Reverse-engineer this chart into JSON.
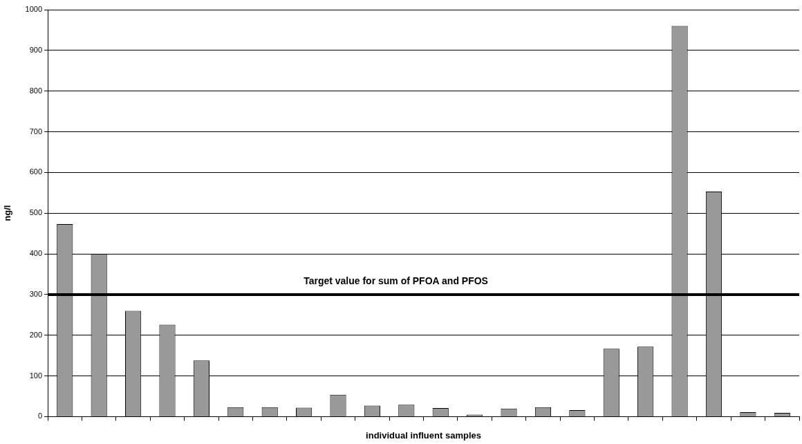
{
  "chart_data": {
    "type": "bar",
    "xlabel": "individual influent samples",
    "ylabel": "ng/l",
    "categories": [
      null,
      null,
      null,
      null,
      null,
      null,
      null,
      null,
      null,
      null,
      null,
      null,
      null,
      null,
      null,
      null,
      null,
      null,
      null,
      null,
      null,
      null
    ],
    "values": [
      473,
      400,
      260,
      226,
      138,
      23,
      23,
      22,
      54,
      27,
      29,
      21,
      5,
      20,
      23,
      16,
      167,
      172,
      960,
      553,
      11,
      9
    ],
    "color": "#999999",
    "ylim": [
      0,
      1000
    ],
    "yticks": [
      0,
      100,
      200,
      300,
      400,
      500,
      600,
      700,
      800,
      900,
      1000
    ],
    "grid": "y",
    "legend": false,
    "tick_labels": "y",
    "ref_lines": [
      {
        "axis": "y",
        "value": 300,
        "label": "Target value for sum of PFOA and PFOS",
        "color": "#000000"
      }
    ]
  }
}
